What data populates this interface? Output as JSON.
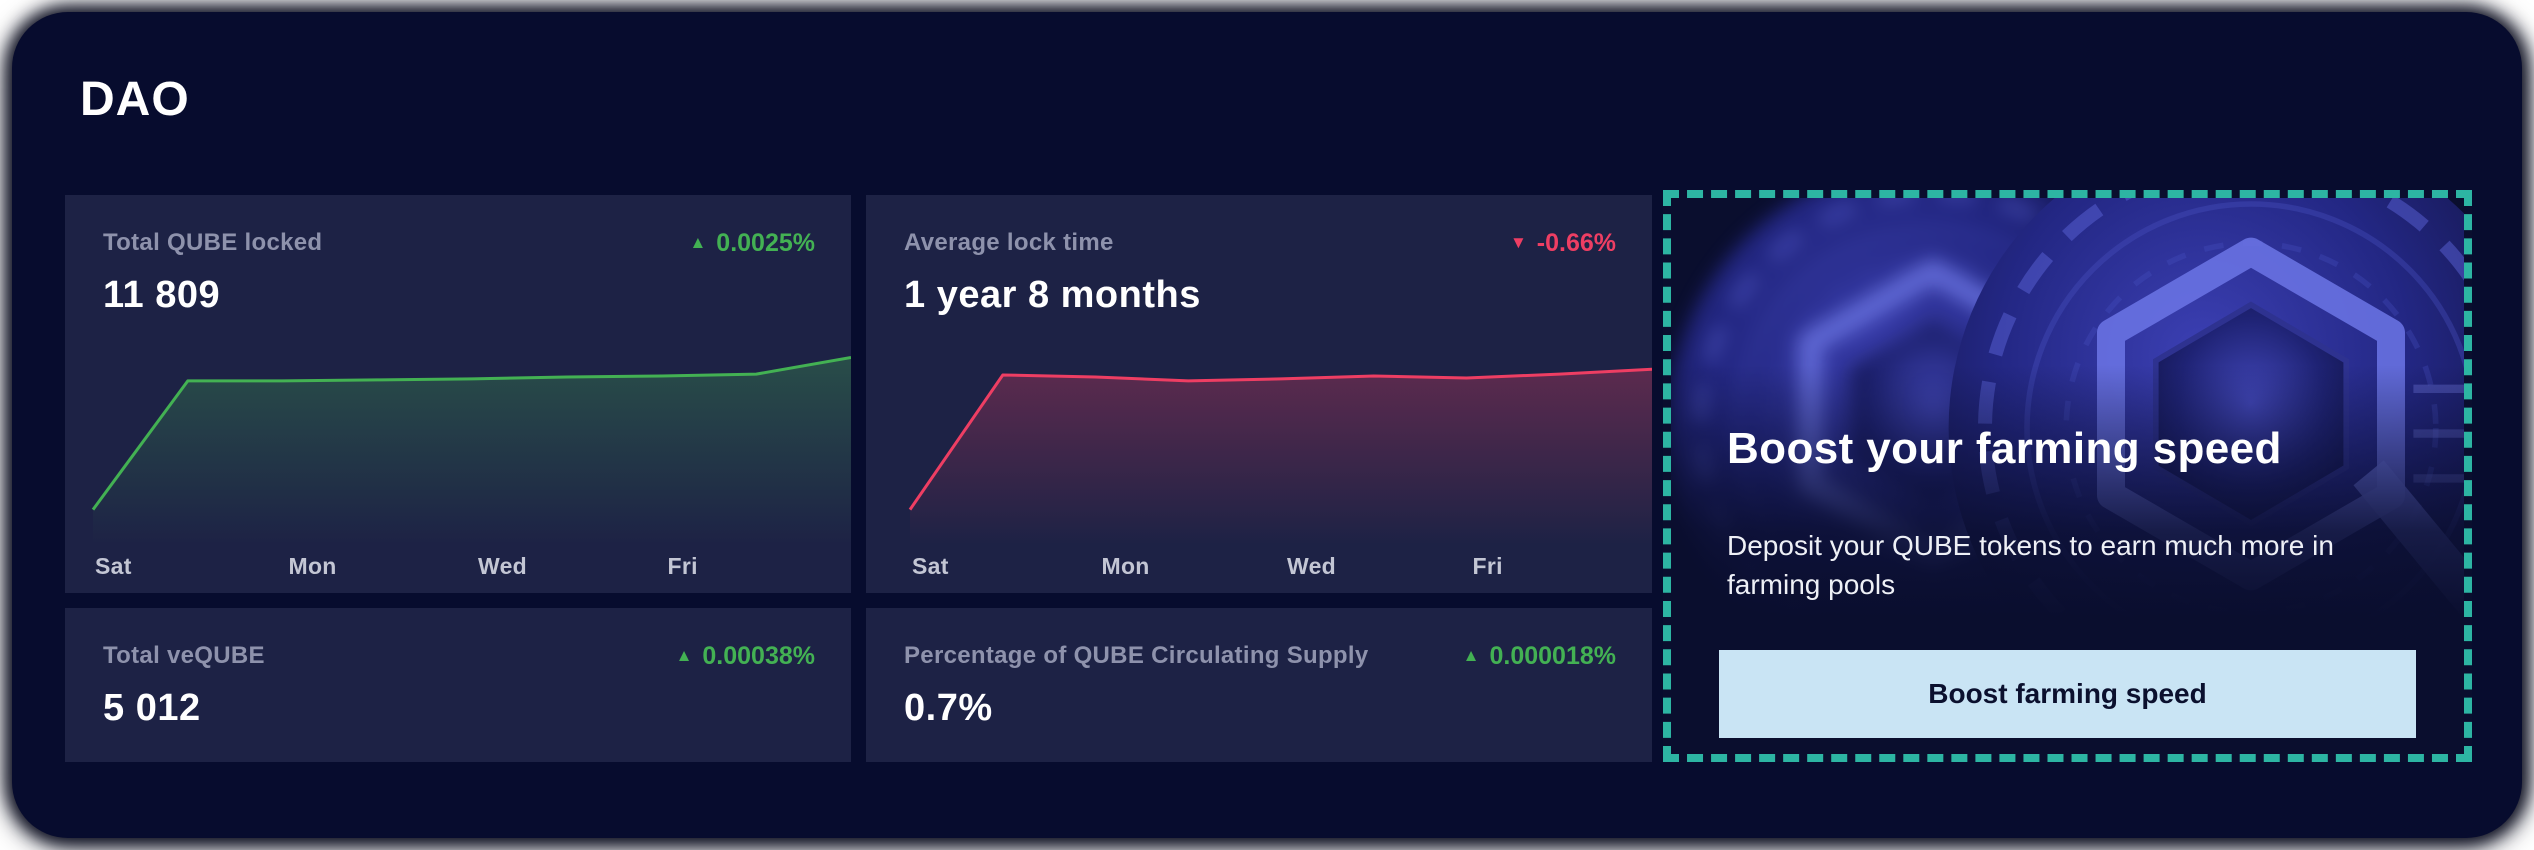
{
  "page": {
    "title": "DAO"
  },
  "icons": {
    "trend_up": "▲",
    "trend_down": "▼"
  },
  "stats": [
    {
      "id": "total-qube-locked",
      "label": "Total QUBE locked",
      "value": "11 809",
      "change": "0.0025%",
      "direction": "up"
    },
    {
      "id": "average-lock-time",
      "label": "Average lock time",
      "value": "1 year 8 months",
      "change": "-0.66%",
      "direction": "down"
    },
    {
      "id": "total-veqube",
      "label": "Total veQUBE",
      "value": "5 012",
      "change": "0.00038%",
      "direction": "up"
    },
    {
      "id": "qube-supply-percentage",
      "label": "Percentage of QUBE Circulating Supply",
      "value": "0.7%",
      "change": "0.000018%",
      "direction": "up"
    }
  ],
  "promo": {
    "title": "Boost your farming speed",
    "description": "Deposit your QUBE tokens to earn much more in farming pools",
    "button_label": "Boost farming speed"
  },
  "colors": {
    "panel_bg": "#070c2e",
    "card_bg": "#1d2245",
    "positive": "#43b153",
    "negative": "#ee3e63",
    "promo_border": "#2db5a3",
    "button_bg": "#c9e4f4",
    "button_text": "#0b102e",
    "label_text": "#8e92ac",
    "axis_text": "#c3c6d4",
    "value_text": "#ffffff"
  },
  "chart_data": [
    {
      "type": "area",
      "title": "Total QUBE locked (weekly sparkline)",
      "line_color": "#43b153",
      "tick_labels": [
        "Sat",
        "Mon",
        "Wed",
        "Fri"
      ],
      "values_relative": [
        0.12,
        0.78,
        0.78,
        0.785,
        0.79,
        0.8,
        0.805,
        0.815,
        0.9
      ],
      "ylabel": "",
      "note": "y-axis unlabeled on screen; values are relative heights 0-1 read from pixels"
    },
    {
      "type": "area",
      "title": "Average lock time (weekly sparkline)",
      "line_color": "#ee3e63",
      "tick_labels": [
        "Sat",
        "Mon",
        "Wed",
        "Fri"
      ],
      "values_relative": [
        0.12,
        0.81,
        0.8,
        0.78,
        0.79,
        0.805,
        0.795,
        0.815,
        0.84
      ],
      "ylabel": "",
      "note": "y-axis unlabeled on screen; values are relative heights 0-1 read from pixels"
    }
  ]
}
